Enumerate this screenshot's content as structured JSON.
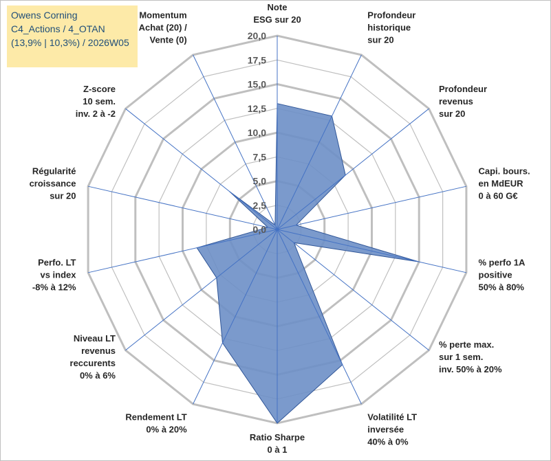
{
  "title_box": {
    "lines": [
      "Owens Corning",
      "C4_Actions / 4_OTAN",
      "(13,9% | 10,3%) / 2026W05"
    ],
    "background": "#fdeaa8",
    "text_color": "#1f4e79"
  },
  "chart_data": {
    "type": "radar",
    "title": "Owens Corning",
    "subtitle": "C4_Actions / 4_OTAN (13,9% | 10,3%) / 2026W05",
    "range": [
      0,
      20
    ],
    "tick_step": 2.5,
    "ticks": [
      "0,0",
      "2,5",
      "5,0",
      "7,5",
      "10,0",
      "12,5",
      "15,0",
      "17,5",
      "20,0"
    ],
    "grid": true,
    "categories": [
      [
        "Note",
        "ESG sur 20"
      ],
      [
        "Profondeur",
        "historique",
        "sur 20"
      ],
      [
        "Profondeur",
        "revenus",
        "sur 20"
      ],
      [
        "Capi. bours.",
        "en MdEUR",
        "0 à 60 G€"
      ],
      [
        "% perfo 1A",
        "positive",
        "50% à 80%"
      ],
      [
        "% perte max.",
        "sur 1 sem.",
        "inv. 50% à 20%"
      ],
      [
        "Volatilité LT",
        "inversée",
        "40% à 0%"
      ],
      [
        "Ratio Sharpe",
        "0 à 1"
      ],
      [
        "Rendement LT",
        "0% à 20%"
      ],
      [
        "Niveau LT",
        "revenus",
        "reccurents",
        "0% à 6%"
      ],
      [
        "Perfo. LT",
        "vs index",
        "-8% à 12%"
      ],
      [
        "Régularité",
        "croissance",
        "sur 20"
      ],
      [
        "Z-score",
        "10 sem.",
        "inv. 2 à -2"
      ],
      [
        "Momentum",
        "Achat (20) /",
        "Vente (0)"
      ]
    ],
    "series": [
      {
        "name": "Owens Corning",
        "values": [
          13.0,
          13.0,
          9.0,
          2.0,
          15.0,
          2.2,
          15.5,
          20.0,
          13.0,
          8.0,
          8.5,
          1.0,
          6.3,
          0.5
        ],
        "fill": "#6d8fc7",
        "stroke": "#2f5597"
      }
    ],
    "grid_color": "#bfbfbf",
    "spoke_color": "#4472c4"
  }
}
